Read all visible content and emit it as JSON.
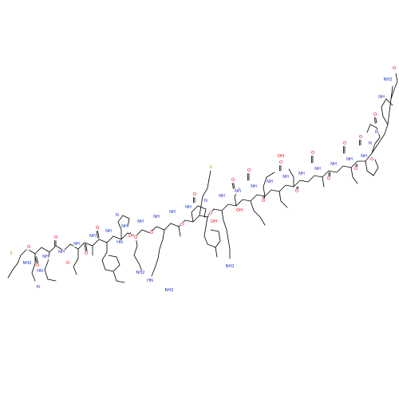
{
  "colors": {
    "O": "#e8000b",
    "N": "#1f2fd6",
    "S": "#b8a000",
    "C": "#000000"
  },
  "atoms": [
    {
      "t": "S",
      "el": "S"
    },
    {
      "t": "NH2",
      "el": "N"
    },
    {
      "t": "O",
      "el": "O"
    },
    {
      "t": "NH",
      "el": "N"
    },
    {
      "t": "O",
      "el": "O"
    },
    {
      "t": "NH",
      "el": "N"
    },
    {
      "t": "N",
      "el": "N"
    },
    {
      "t": "HN",
      "el": "N"
    },
    {
      "t": "O",
      "el": "O"
    },
    {
      "t": "NH",
      "el": "N"
    },
    {
      "t": "O",
      "el": "O"
    },
    {
      "t": "NH",
      "el": "N"
    },
    {
      "t": "O",
      "el": "O"
    },
    {
      "t": "NH",
      "el": "N"
    },
    {
      "t": "O",
      "el": "O"
    },
    {
      "t": "NH",
      "el": "N"
    },
    {
      "t": "HN",
      "el": "N"
    },
    {
      "t": "N",
      "el": "N"
    },
    {
      "t": "O",
      "el": "O"
    },
    {
      "t": "NH",
      "el": "N"
    },
    {
      "t": "O",
      "el": "O"
    },
    {
      "t": "NH2",
      "el": "N"
    },
    {
      "t": "NH",
      "el": "N"
    },
    {
      "t": "O",
      "el": "O"
    },
    {
      "t": "NH",
      "el": "N"
    },
    {
      "t": "HN",
      "el": "N"
    },
    {
      "t": "NH2",
      "el": "N"
    },
    {
      "t": "NH",
      "el": "N"
    },
    {
      "t": "O",
      "el": "O"
    },
    {
      "t": "N",
      "el": "N"
    },
    {
      "t": "O",
      "el": "O"
    },
    {
      "t": "S",
      "el": "S"
    },
    {
      "t": "NH",
      "el": "N"
    },
    {
      "t": "OH",
      "el": "O"
    },
    {
      "t": "O",
      "el": "O"
    },
    {
      "t": "NH",
      "el": "N"
    },
    {
      "t": "O",
      "el": "O"
    },
    {
      "t": "OH",
      "el": "O"
    },
    {
      "t": "NH",
      "el": "N"
    },
    {
      "t": "O",
      "el": "O"
    },
    {
      "t": "NH2",
      "el": "N"
    },
    {
      "t": "NH",
      "el": "N"
    },
    {
      "t": "O",
      "el": "O"
    },
    {
      "t": "NH",
      "el": "N"
    },
    {
      "t": "O",
      "el": "O"
    },
    {
      "t": "OH",
      "el": "O"
    },
    {
      "t": "NH",
      "el": "N"
    },
    {
      "t": "O",
      "el": "O"
    },
    {
      "t": "NH",
      "el": "N"
    },
    {
      "t": "O",
      "el": "O"
    },
    {
      "t": "NH",
      "el": "N"
    },
    {
      "t": "O",
      "el": "O"
    },
    {
      "t": "NH",
      "el": "N"
    },
    {
      "t": "O",
      "el": "O"
    },
    {
      "t": "NH",
      "el": "N"
    },
    {
      "t": "O",
      "el": "O"
    },
    {
      "t": "N",
      "el": "N"
    },
    {
      "t": "O",
      "el": "O"
    },
    {
      "t": "N",
      "el": "N"
    },
    {
      "t": "O",
      "el": "O"
    },
    {
      "t": "NH",
      "el": "N"
    },
    {
      "t": "O",
      "el": "O"
    },
    {
      "t": "NH2",
      "el": "N"
    },
    {
      "t": "O",
      "el": "O"
    }
  ]
}
